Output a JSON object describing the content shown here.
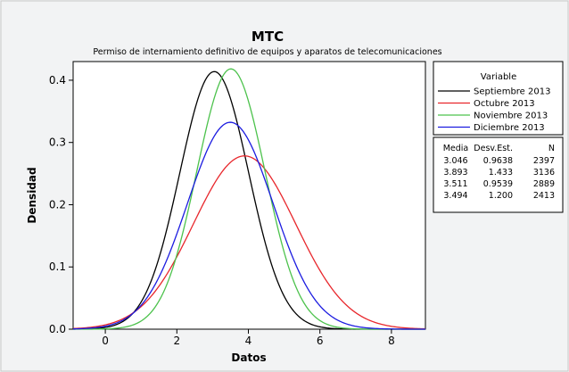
{
  "chart_data": {
    "type": "line",
    "title": "MTC",
    "subtitle": "Permiso de internamiento definitivo de equipos y aparatos de telecomunicaciones",
    "xlabel": "Datos",
    "ylabel": "Densidad",
    "xlim": [
      -0.9,
      8.95
    ],
    "ylim": [
      0,
      0.43
    ],
    "xticks": [
      0,
      2,
      4,
      6,
      8
    ],
    "yticks": [
      0.0,
      0.1,
      0.2,
      0.3,
      0.4
    ],
    "ytick_labels": [
      "0.0",
      "0.1",
      "0.2",
      "0.3",
      "0.4"
    ],
    "grid": false,
    "legend_title": "Variable",
    "legend_position": "right",
    "series": [
      {
        "name": "Septiembre 2013",
        "color": "#000000",
        "mean": 3.046,
        "sd": 0.9638
      },
      {
        "name": "Octubre 2013",
        "color": "#e8272c",
        "mean": 3.893,
        "sd": 1.433
      },
      {
        "name": "Noviembre 2013",
        "color": "#4cc24c",
        "mean": 3.511,
        "sd": 0.9539
      },
      {
        "name": "Diciembre 2013",
        "color": "#1c1ce0",
        "mean": 3.494,
        "sd": 1.2
      }
    ],
    "stats_table": {
      "headers": [
        "Media",
        "Desv.Est.",
        "N"
      ],
      "rows": [
        [
          "3.046",
          "0.9638",
          "2397"
        ],
        [
          "3.893",
          "1.433",
          "3136"
        ],
        [
          "3.511",
          "0.9539",
          "2889"
        ],
        [
          "3.494",
          "1.200",
          "2413"
        ]
      ]
    }
  }
}
